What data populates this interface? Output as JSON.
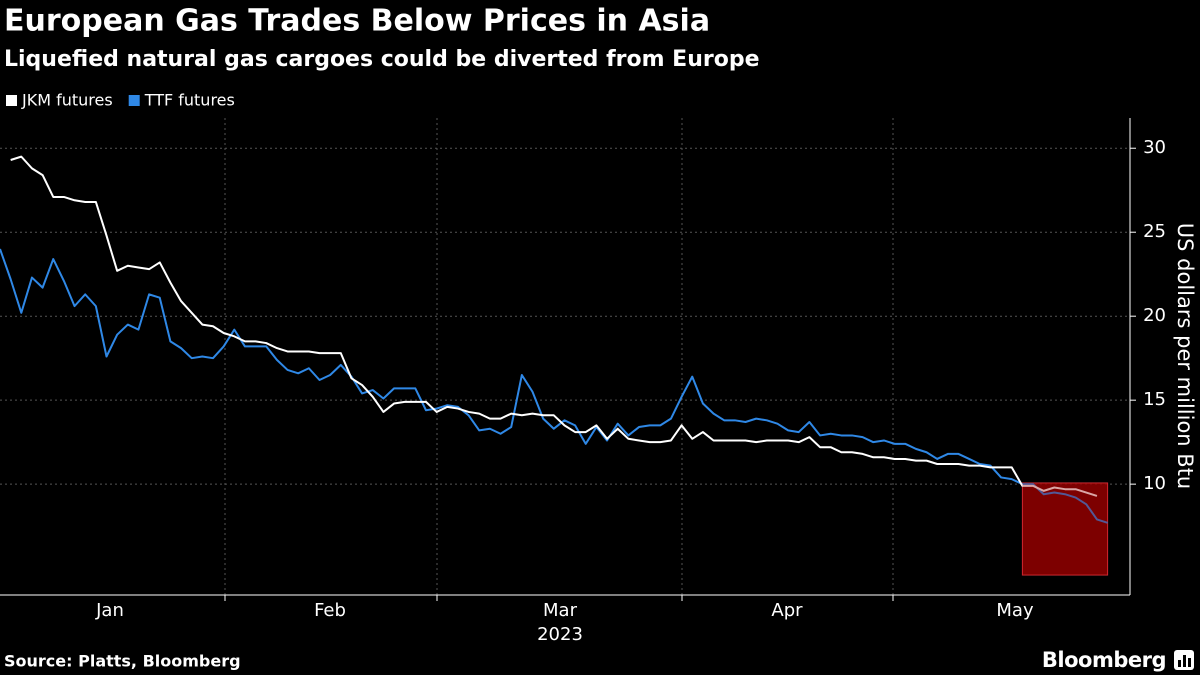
{
  "chart_data": {
    "type": "line",
    "title": "European Gas Trades Below Prices in Asia",
    "subtitle": "Liquefied natural gas cargoes could be diverted from Europe",
    "y_label": "US dollars per million Btu",
    "x_labels": [
      "Jan",
      "Feb",
      "Mar",
      "Apr",
      "May"
    ],
    "x_year": "2023",
    "source": "Source: Platts, Bloomberg",
    "brand": "Bloomberg",
    "ylim": [
      3.4,
      31.8
    ],
    "yticks": [
      10,
      15,
      20,
      25,
      30
    ],
    "grid": true,
    "series": [
      {
        "name": "JKM futures",
        "color": "#ffffff",
        "values": [
          null,
          29.3,
          29.5,
          28.8,
          28.4,
          27.1,
          27.1,
          26.9,
          26.8,
          26.8,
          24.8,
          22.7,
          23.0,
          22.9,
          22.8,
          23.2,
          22.0,
          20.9,
          20.2,
          19.5,
          19.4,
          19.0,
          18.8,
          18.5,
          18.5,
          18.4,
          18.1,
          17.9,
          17.9,
          17.9,
          17.8,
          17.8,
          17.8,
          16.3,
          15.9,
          15.2,
          14.3,
          14.8,
          14.9,
          14.9,
          14.9,
          14.3,
          14.6,
          14.5,
          14.3,
          14.2,
          13.9,
          13.9,
          14.2,
          14.1,
          14.2,
          14.1,
          14.1,
          13.5,
          13.1,
          13.1,
          13.5,
          12.7,
          13.3,
          12.7,
          12.6,
          12.5,
          12.5,
          12.6,
          13.5,
          12.7,
          13.1,
          12.6,
          12.6,
          12.6,
          12.6,
          12.5,
          12.6,
          12.6,
          12.6,
          12.5,
          12.8,
          12.2,
          12.2,
          11.9,
          11.9,
          11.8,
          11.6,
          11.6,
          11.5,
          11.5,
          11.4,
          11.4,
          11.2,
          11.2,
          11.2,
          11.1,
          11.1,
          11.0,
          11.0,
          11.0,
          9.9,
          9.9,
          9.6,
          9.8,
          9.7,
          9.7,
          9.5,
          9.3,
          null
        ]
      },
      {
        "name": "TTF futures",
        "color": "#2f88e6",
        "values": [
          24.0,
          22.2,
          20.2,
          22.3,
          21.7,
          23.4,
          22.1,
          20.6,
          21.3,
          20.6,
          17.6,
          18.9,
          19.5,
          19.2,
          21.3,
          21.1,
          18.5,
          18.1,
          17.5,
          17.6,
          17.5,
          18.2,
          19.2,
          18.2,
          18.2,
          18.2,
          17.4,
          16.8,
          16.6,
          16.9,
          16.2,
          16.5,
          17.1,
          16.4,
          15.4,
          15.6,
          15.1,
          15.7,
          15.7,
          15.7,
          14.4,
          14.5,
          14.7,
          14.6,
          14.1,
          13.2,
          13.3,
          13.0,
          13.4,
          16.5,
          15.5,
          13.9,
          13.3,
          13.8,
          13.5,
          12.4,
          13.4,
          12.6,
          13.6,
          12.9,
          13.4,
          13.5,
          13.5,
          13.9,
          15.2,
          16.4,
          14.8,
          14.2,
          13.8,
          13.8,
          13.7,
          13.9,
          13.8,
          13.6,
          13.2,
          13.1,
          13.7,
          12.9,
          13.0,
          12.9,
          12.9,
          12.8,
          12.5,
          12.6,
          12.4,
          12.4,
          12.1,
          11.9,
          11.5,
          11.8,
          11.8,
          11.5,
          11.2,
          11.1,
          10.4,
          10.3,
          10.0,
          10.0,
          9.4,
          9.5,
          9.4,
          9.2,
          8.8,
          7.9,
          7.7
        ]
      }
    ]
  }
}
